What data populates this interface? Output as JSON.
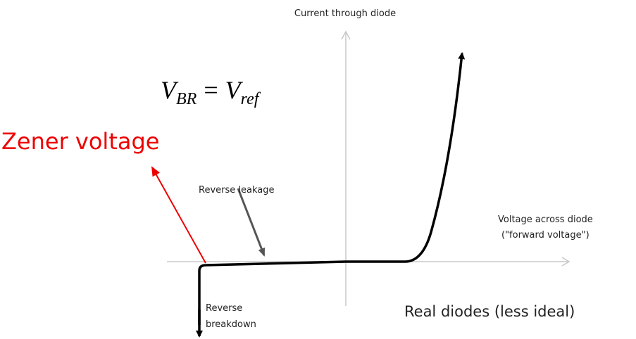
{
  "y_axis_label": "Current through diode",
  "equation": {
    "lhs": {
      "base": "V",
      "sub": "BR"
    },
    "operator": "=",
    "rhs": {
      "base": "V",
      "sub": "ref"
    }
  },
  "zener_label": "Zener voltage",
  "leakage_label": "Reverse leakage",
  "x_axis_label": {
    "line1": "Voltage across diode",
    "line2": "(\"forward voltage\")"
  },
  "breakdown_label": {
    "line1": "Reverse",
    "line2": "breakdown"
  },
  "caption": "Real diodes (less ideal)"
}
